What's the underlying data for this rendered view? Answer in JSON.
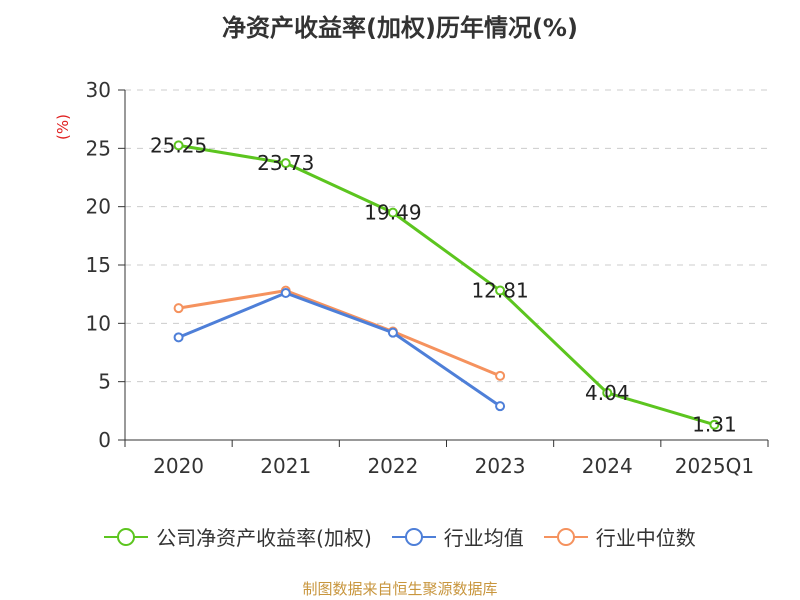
{
  "title": "净资产收益率(加权)历年情况(%)",
  "footer": "制图数据来自恒生聚源数据库",
  "chart_data": {
    "type": "line",
    "categories": [
      "2020",
      "2021",
      "2022",
      "2023",
      "2024",
      "2025Q1"
    ],
    "ylabel": "(%)",
    "ylim": [
      0,
      30
    ],
    "yticks": [
      0,
      5,
      10,
      15,
      20,
      25,
      30
    ],
    "grid": true,
    "legend_position": "bottom",
    "series": [
      {
        "name": "公司净资产收益率(加权)",
        "color": "#5cc51f",
        "values": [
          25.25,
          23.73,
          19.49,
          12.81,
          4.04,
          1.31
        ],
        "labels": [
          "25.25",
          "23.73",
          "19.49",
          "12.81",
          "4.04",
          "1.31"
        ]
      },
      {
        "name": "行业均值",
        "color": "#4e7fd8",
        "values": [
          8.8,
          12.6,
          9.2,
          2.9,
          null,
          null
        ]
      },
      {
        "name": "行业中位数",
        "color": "#f5925e",
        "values": [
          11.3,
          12.8,
          9.3,
          5.5,
          null,
          null
        ]
      }
    ]
  }
}
